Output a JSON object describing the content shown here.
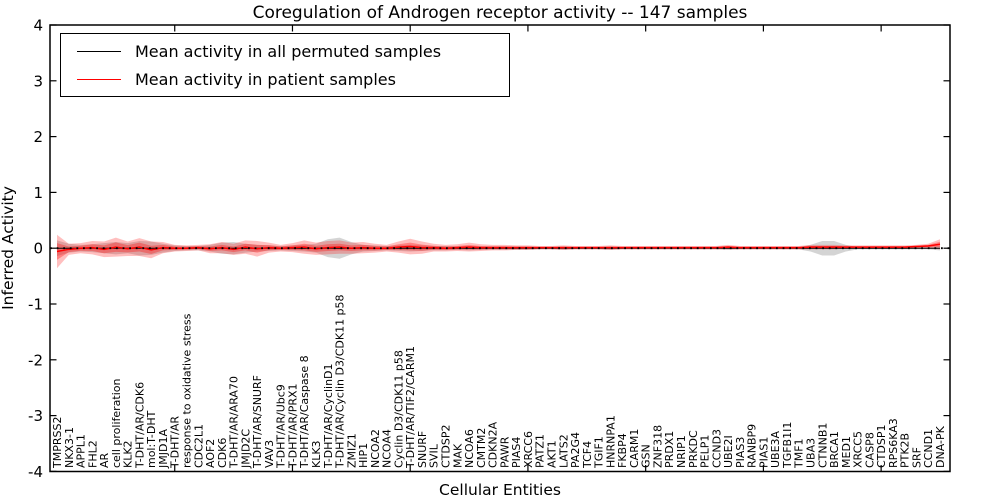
{
  "figure": {
    "title": "Coregulation of Androgen receptor activity -- 147 samples",
    "xlabel": "Cellular Entities",
    "ylabel": "Inferred Activity",
    "background": "#ffffff",
    "frame_color": "#000000"
  },
  "legend": {
    "items": [
      {
        "label": "Mean activity in all permuted samples",
        "color": "#000000"
      },
      {
        "label": "Mean activity in patient samples",
        "color": "#ff0000"
      }
    ]
  },
  "axes": {
    "y_ticks": [
      "-4",
      "-3",
      "-2",
      "-1",
      "0",
      "1",
      "2",
      "3",
      "4"
    ],
    "y_tick_values": [
      -4,
      -3,
      -2,
      -1,
      0,
      1,
      2,
      3,
      4
    ],
    "x_major_tick_indices": [
      10,
      20,
      30,
      40,
      50,
      60,
      70
    ]
  },
  "chart_data": {
    "type": "line",
    "title": "Coregulation of Androgen receptor activity -- 147 samples",
    "xlabel": "Cellular Entities",
    "ylabel": "Inferred Activity",
    "ylim": [
      -4,
      4
    ],
    "grid": false,
    "legend_position": "upper left",
    "zero_line": true,
    "categories": [
      "TMPRSS2",
      "NKX3-1",
      "APPL1",
      "FHL2",
      "AR",
      "cell proliferation",
      "KLK2",
      "T-DHT/AR/CDK6",
      "mol:T-DHT",
      "JMJD1A",
      "T-DHT/AR",
      "response to oxidative stress",
      "CDC2L1",
      "AOF2",
      "CDK6",
      "T-DHT/AR/ARA70",
      "JMJD2C",
      "T-DHT/AR/SNURF",
      "VAV3",
      "T-DHT/AR/Ubc9",
      "T-DHT/AR/PRX1",
      "T-DHT/AR/Caspase 8",
      "KLK3",
      "T-DHT/AR/CyclinD1",
      "T-DHT/AR/Cyclin D3/CDK11 p58",
      "ZMIZ1",
      "HIP1",
      "NCOA2",
      "NCOA4",
      "Cyclin D3/CDK11 p58",
      "T-DHT/AR/TIF2/CARM1",
      "SNURF",
      "SVIL",
      "CTDSP2",
      "MAK",
      "NCOA6",
      "CMTM2",
      "CDKN2A",
      "PAWR",
      "PIAS4",
      "XRCC6",
      "PATZ1",
      "AKT1",
      "LATS2",
      "PA2G4",
      "TCF4",
      "TGIF1",
      "HNRNPA1",
      "FKBP4",
      "CARM1",
      "GSN",
      "ZNF318",
      "PRDX1",
      "NRIP1",
      "PRKDC",
      "PELP1",
      "CCND3",
      "UBE2I",
      "PIAS3",
      "RANBP9",
      "PIAS1",
      "UBE3A",
      "TGFB1I1",
      "TMF1",
      "UBA3",
      "CTNNB1",
      "BRCA1",
      "MED1",
      "XRCC5",
      "CASP8",
      "CTDSP1",
      "RPS6KA3",
      "PTK2B",
      "SRF",
      "CCND1",
      "DNA-PK"
    ],
    "series": [
      {
        "name": "Mean activity in all permuted samples",
        "color": "#000000",
        "band_color": "#aaaaaa",
        "values": [
          0,
          0,
          0,
          0,
          0,
          0,
          0,
          0,
          0,
          0,
          0,
          0,
          0,
          0,
          0,
          0,
          0,
          0,
          0,
          0,
          0,
          0,
          0,
          0,
          0,
          0,
          0,
          0,
          0,
          0,
          0,
          0,
          0,
          0,
          0,
          0,
          0,
          0,
          0,
          0,
          0,
          0,
          0,
          0,
          0,
          0,
          0,
          0,
          0,
          0,
          0,
          0,
          0,
          0,
          0,
          0,
          0,
          0,
          0,
          0,
          0,
          0,
          0,
          0,
          0,
          0,
          0,
          0,
          0,
          0,
          0,
          0,
          0,
          0,
          0,
          0
        ],
        "band": [
          0.14,
          0.08,
          0.06,
          0.07,
          0.09,
          0.11,
          0.09,
          0.13,
          0.12,
          0.08,
          0.05,
          0.04,
          0.04,
          0.06,
          0.1,
          0.11,
          0.08,
          0.06,
          0.05,
          0.04,
          0.05,
          0.06,
          0.08,
          0.16,
          0.19,
          0.11,
          0.06,
          0.05,
          0.04,
          0.05,
          0.06,
          0.05,
          0.04,
          0.04,
          0.03,
          0.04,
          0.03,
          0.03,
          0.03,
          0.03,
          0.03,
          0.02,
          0.02,
          0.03,
          0.02,
          0.02,
          0.02,
          0.03,
          0.02,
          0.02,
          0.02,
          0.02,
          0.02,
          0.02,
          0.02,
          0.02,
          0.02,
          0.03,
          0.02,
          0.02,
          0.02,
          0.02,
          0.02,
          0.02,
          0.06,
          0.13,
          0.13,
          0.06,
          0.02,
          0.02,
          0.02,
          0.02,
          0.02,
          0.02,
          0.02,
          0.04
        ]
      },
      {
        "name": "Mean activity in patient samples",
        "color": "#ff0000",
        "band_color": "#ff0000",
        "values": [
          -0.06,
          -0.02,
          0.0,
          0.01,
          -0.02,
          0.02,
          -0.01,
          0.02,
          -0.03,
          0.01,
          0.0,
          0.0,
          0.01,
          -0.01,
          0.01,
          -0.02,
          0.02,
          -0.01,
          0.01,
          0.0,
          0.01,
          0.02,
          -0.01,
          0.01,
          0.02,
          0.0,
          0.01,
          0.0,
          0.0,
          0.02,
          0.03,
          0.01,
          0.01,
          0.0,
          0.01,
          0.02,
          0.01,
          0.01,
          0.01,
          0.01,
          0.01,
          0.01,
          0.01,
          0.01,
          0.01,
          0.01,
          0.01,
          0.01,
          0.01,
          0.01,
          0.01,
          0.01,
          0.01,
          0.01,
          0.01,
          0.01,
          0.01,
          0.02,
          0.01,
          0.01,
          0.01,
          0.01,
          0.01,
          0.01,
          0.02,
          0.02,
          0.02,
          0.02,
          0.02,
          0.02,
          0.02,
          0.02,
          0.02,
          0.03,
          0.04,
          0.07
        ],
        "band": [
          0.3,
          0.1,
          0.09,
          0.12,
          0.14,
          0.17,
          0.13,
          0.16,
          0.15,
          0.1,
          0.06,
          0.05,
          0.05,
          0.08,
          0.1,
          0.1,
          0.12,
          0.14,
          0.09,
          0.06,
          0.08,
          0.12,
          0.11,
          0.12,
          0.12,
          0.1,
          0.1,
          0.08,
          0.06,
          0.1,
          0.14,
          0.11,
          0.07,
          0.06,
          0.06,
          0.08,
          0.06,
          0.05,
          0.05,
          0.04,
          0.04,
          0.03,
          0.03,
          0.04,
          0.03,
          0.03,
          0.03,
          0.04,
          0.03,
          0.03,
          0.03,
          0.03,
          0.03,
          0.03,
          0.03,
          0.03,
          0.03,
          0.04,
          0.03,
          0.03,
          0.03,
          0.03,
          0.03,
          0.03,
          0.04,
          0.04,
          0.04,
          0.03,
          0.03,
          0.03,
          0.03,
          0.03,
          0.03,
          0.03,
          0.04,
          0.09
        ]
      }
    ]
  }
}
